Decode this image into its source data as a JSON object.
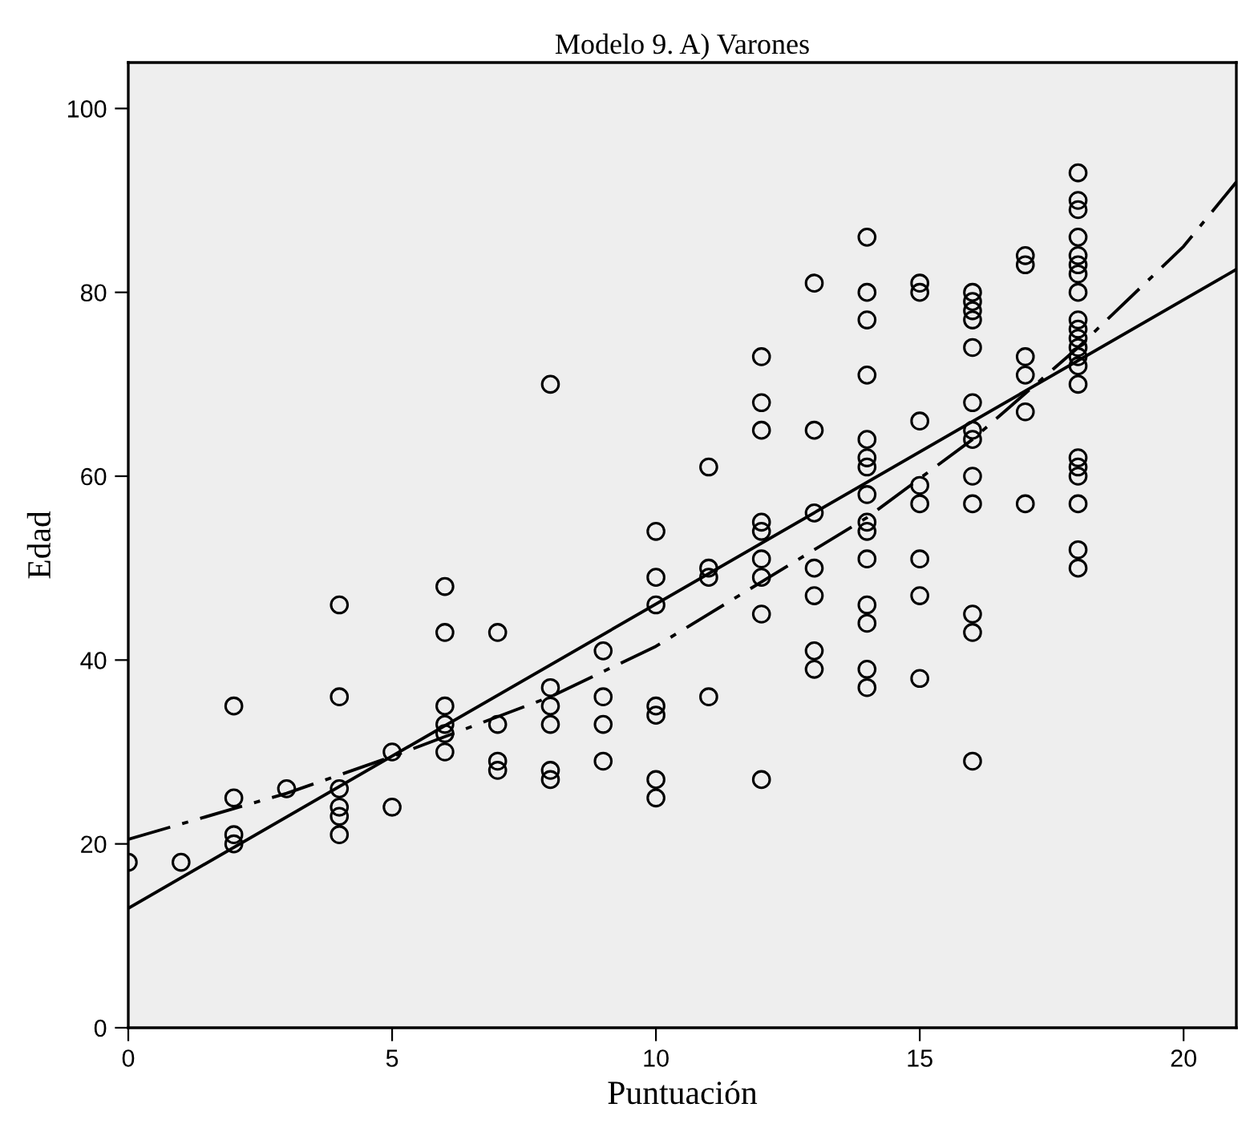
{
  "chart_data": {
    "type": "scatter",
    "title": "Modelo 9. A) Varones",
    "xlabel": "Puntuación",
    "ylabel": "Edad",
    "xlim": [
      0,
      21
    ],
    "ylim": [
      0,
      105
    ],
    "xticks": [
      0,
      5,
      10,
      15,
      20
    ],
    "yticks": [
      0,
      20,
      40,
      60,
      80,
      100
    ],
    "grid": false,
    "series": [
      {
        "color": "#000000",
        "marker": "circle",
        "x": [
          0,
          1,
          2,
          2,
          2,
          2,
          3,
          4,
          4,
          4,
          4,
          4,
          4,
          5,
          5,
          6,
          6,
          6,
          6,
          6,
          6,
          7,
          7,
          7,
          7,
          8,
          8,
          8,
          8,
          8,
          8,
          9,
          9,
          9,
          9,
          10,
          10,
          10,
          10,
          10,
          10,
          10,
          11,
          11,
          11,
          11,
          12,
          12,
          12,
          12,
          12,
          12,
          12,
          12,
          12,
          13,
          13,
          13,
          13,
          13,
          13,
          13,
          14,
          14,
          14,
          14,
          14,
          14,
          14,
          14,
          14,
          14,
          14,
          14,
          14,
          14,
          14,
          15,
          15,
          15,
          15,
          15,
          15,
          15,
          15,
          16,
          16,
          16,
          16,
          16,
          16,
          16,
          16,
          16,
          16,
          16,
          16,
          16,
          17,
          17,
          17,
          17,
          17,
          17,
          18,
          18,
          18,
          18,
          18,
          18,
          18,
          18,
          18,
          18,
          18,
          18,
          18,
          18,
          18,
          18,
          18,
          18,
          18,
          18,
          18
        ],
        "values": [
          18,
          18,
          35,
          25,
          21,
          20,
          26,
          46,
          36,
          26,
          24,
          23,
          21,
          30,
          24,
          48,
          43,
          35,
          33,
          32,
          30,
          43,
          33,
          29,
          28,
          70,
          37,
          35,
          33,
          28,
          27,
          41,
          36,
          33,
          29,
          54,
          49,
          46,
          35,
          34,
          27,
          25,
          61,
          50,
          49,
          36,
          73,
          68,
          65,
          55,
          54,
          51,
          49,
          45,
          27,
          81,
          65,
          56,
          50,
          47,
          41,
          39,
          86,
          80,
          77,
          71,
          64,
          62,
          61,
          58,
          55,
          54,
          51,
          46,
          44,
          39,
          37,
          81,
          80,
          66,
          59,
          57,
          51,
          47,
          38,
          80,
          79,
          78,
          77,
          74,
          68,
          65,
          64,
          60,
          57,
          45,
          43,
          29,
          84,
          83,
          73,
          71,
          67,
          57,
          93,
          90,
          89,
          86,
          84,
          83,
          82,
          80,
          77,
          76,
          75,
          74,
          73,
          72,
          70,
          62,
          61,
          60,
          57,
          52,
          50
        ]
      },
      {
        "type": "line",
        "color": "#000000",
        "line_style": "solid",
        "marker": "none",
        "x": [
          0,
          21
        ],
        "values": [
          13,
          82.5
        ]
      },
      {
        "type": "line",
        "color": "#000000",
        "line_style": "dashed",
        "marker": "none",
        "x": [
          0,
          3,
          5,
          8,
          10,
          12,
          14,
          16,
          17,
          18,
          20,
          21
        ],
        "values": [
          20.5,
          25.5,
          29.5,
          36,
          41.5,
          48.5,
          55.5,
          64,
          69,
          74,
          85,
          92
        ]
      }
    ]
  }
}
